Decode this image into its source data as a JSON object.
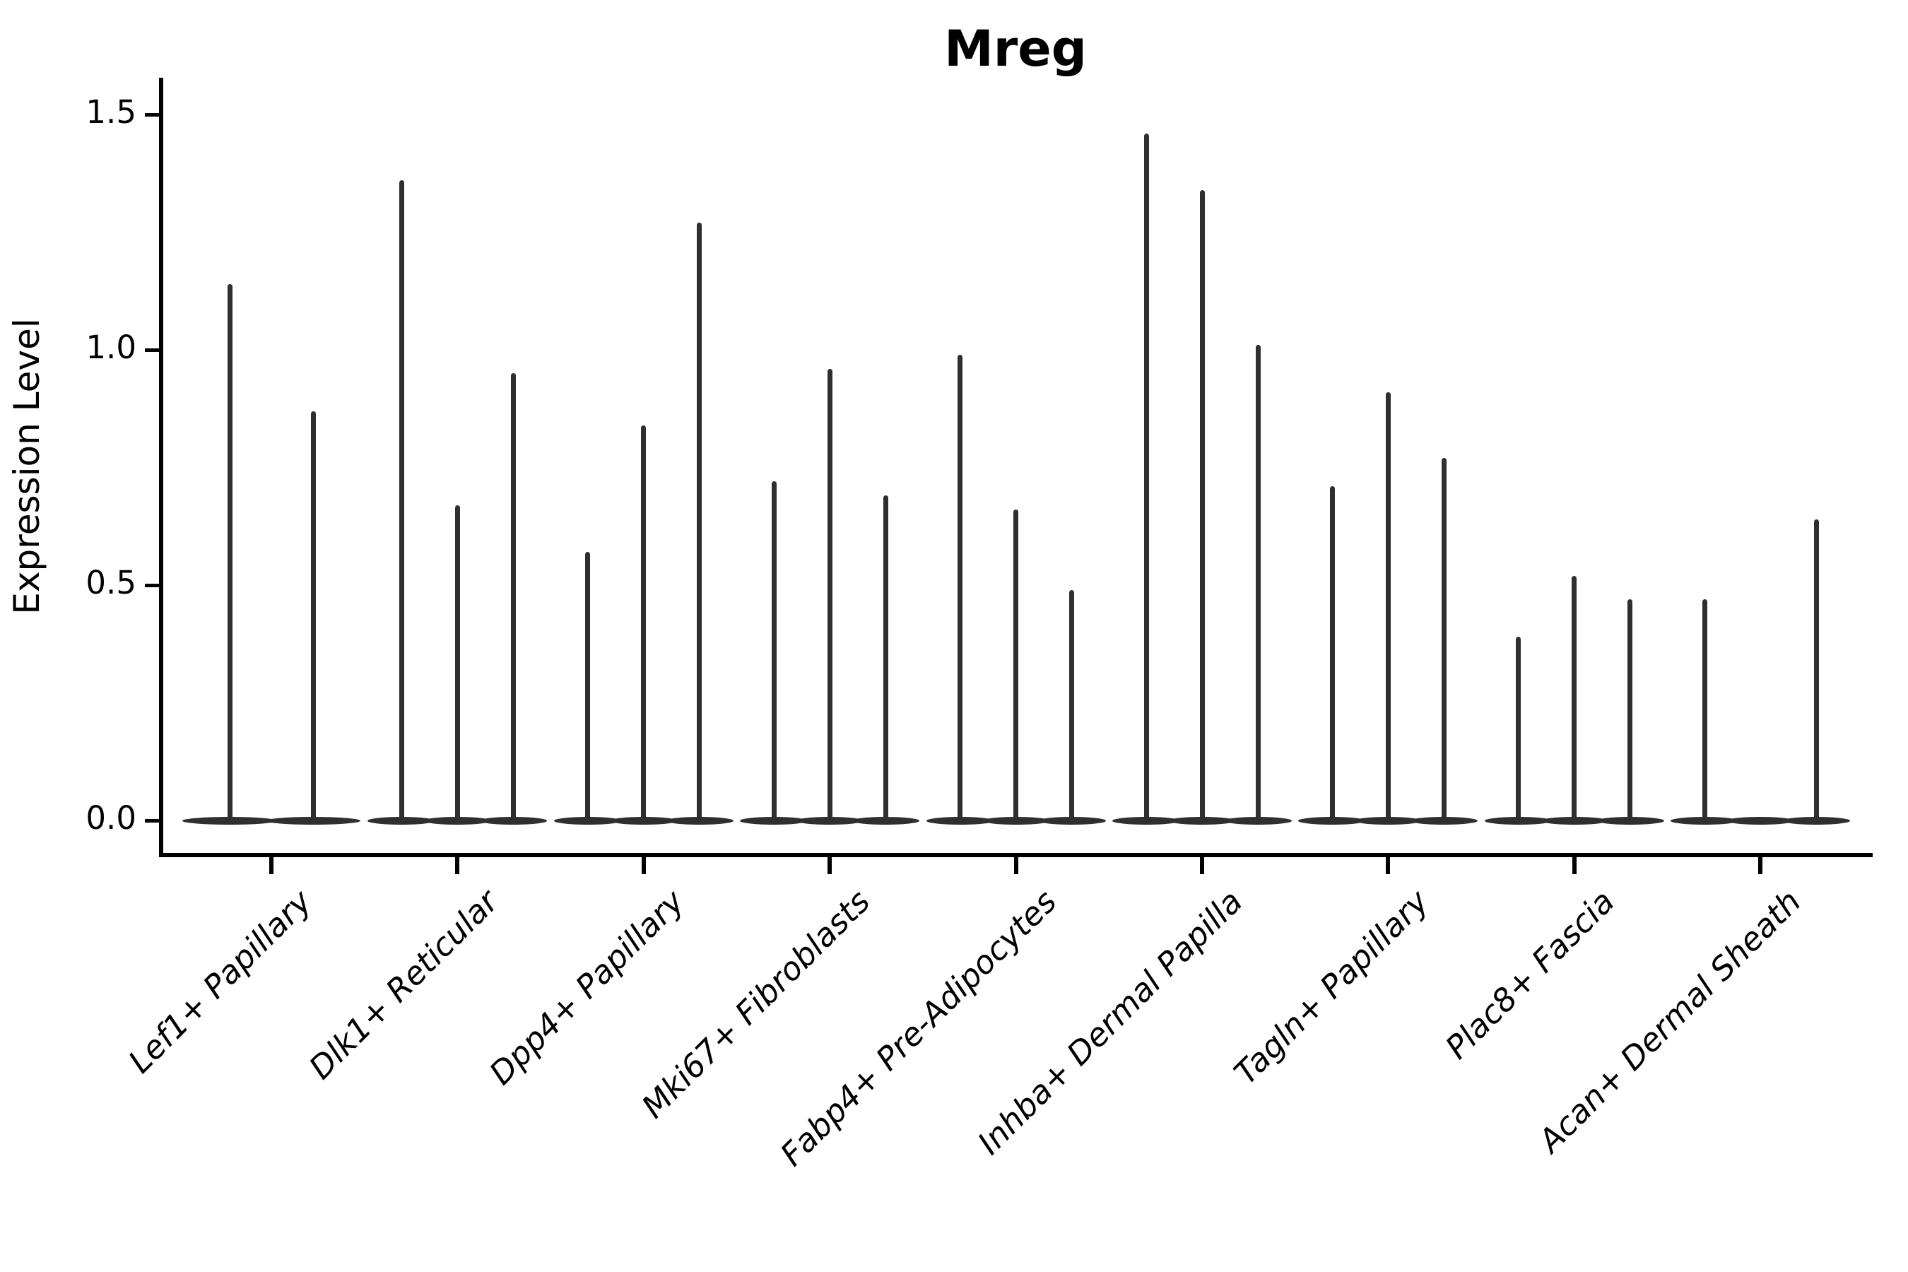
{
  "title": "Mreg",
  "y_axis": {
    "label": "Expression Level",
    "ticks": [
      "0.0",
      "0.5",
      "1.0",
      "1.5"
    ],
    "tick_values": [
      0.0,
      0.5,
      1.0,
      1.5
    ]
  },
  "colors": {
    "violin": "#2f2f2f",
    "axis": "#000000",
    "text": "#000000",
    "background": "#ffffff"
  },
  "chart_data": {
    "type": "violin",
    "title": "Mreg",
    "xlabel": "",
    "ylabel": "Expression Level",
    "ylim": [
      0,
      1.5
    ],
    "yticks": [
      0.0,
      0.5,
      1.0,
      1.5
    ],
    "grid": false,
    "legend": false,
    "description": "Needle-thin violin plot of Mreg expression per fibroblast cluster; each category contains 2-3 sub-violins whose bulk sits at 0 with a thin spike reaching the maximum expression value listed.",
    "categories": [
      "Lef1+ Papillary",
      "Dlk1+ Reticular",
      "Dpp4+ Papillary",
      "Mki67+ Fibroblasts",
      "Fabp4+ Pre-Adipocytes",
      "Inhba+ Dermal Papilla",
      "Tagln+ Papillary",
      "Plac8+ Fascia",
      "Acan+ Dermal Sheath"
    ],
    "groups": [
      {
        "category": "Lef1+ Papillary",
        "spike_max_values": [
          1.14,
          0.87
        ]
      },
      {
        "category": "Dlk1+ Reticular",
        "spike_max_values": [
          1.36,
          0.67,
          0.95
        ]
      },
      {
        "category": "Dpp4+ Papillary",
        "spike_max_values": [
          0.57,
          0.84,
          1.27
        ]
      },
      {
        "category": "Mki67+ Fibroblasts",
        "spike_max_values": [
          0.72,
          0.96,
          0.69
        ]
      },
      {
        "category": "Fabp4+ Pre-Adipocytes",
        "spike_max_values": [
          0.99,
          0.66,
          0.49
        ]
      },
      {
        "category": "Inhba+ Dermal Papilla",
        "spike_max_values": [
          1.46,
          1.34,
          1.01
        ]
      },
      {
        "category": "Tagln+ Papillary",
        "spike_max_values": [
          0.71,
          0.91,
          0.77
        ]
      },
      {
        "category": "Plac8+ Fascia",
        "spike_max_values": [
          0.39,
          0.52,
          0.47
        ]
      },
      {
        "category": "Acan+ Dermal Sheath",
        "spike_max_values": [
          0.47,
          0.0,
          0.64
        ]
      }
    ]
  }
}
